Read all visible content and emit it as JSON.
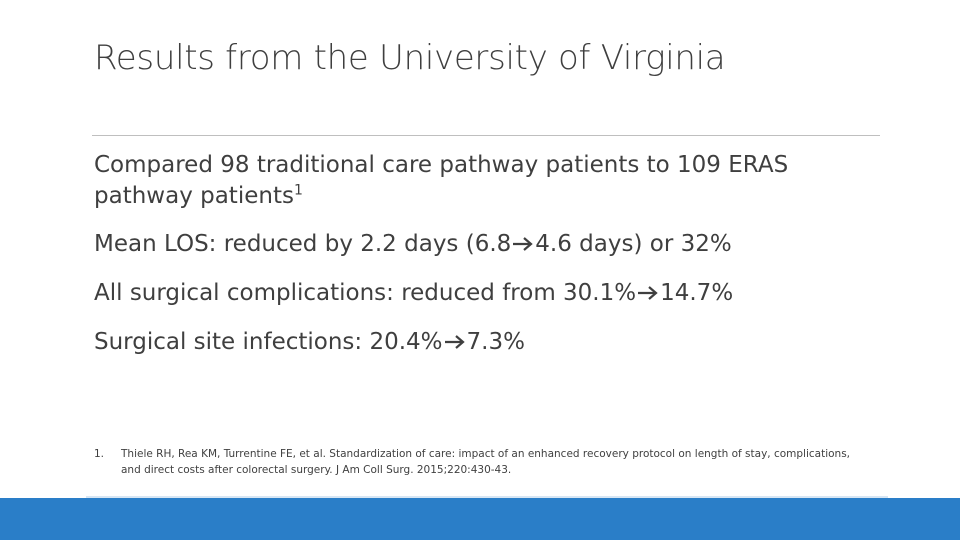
{
  "slide": {
    "title": "Results from the University of Virginia"
  },
  "bullets": [
    {
      "text": "Compared 98 traditional care pathway patients to 109 ERAS pathway patients",
      "sup": "1"
    },
    {
      "before": "Mean LOS: reduced by 2.2 days (6.8",
      "after": "4.6 days) or 32%"
    },
    {
      "before": "All surgical complications: reduced from 30.1%",
      "after": "14.7%"
    },
    {
      "before": "Surgical site infections: 20.4%",
      "after": "7.3%"
    }
  ],
  "footnote": {
    "number": "1.",
    "text": "Thiele RH, Rea KM, Turrentine FE, et al. Standardization of care: impact of an enhanced recovery protocol on length of stay, complications, and direct costs after colorectal surgery. J Am Coll Surg. 2015;220:430-43."
  },
  "colors": {
    "footer_band": "#2a7ec8",
    "text": "#3f3f3f",
    "divider": "#bfbfbf"
  },
  "icons": {
    "arrow": "arrow-right-icon"
  }
}
